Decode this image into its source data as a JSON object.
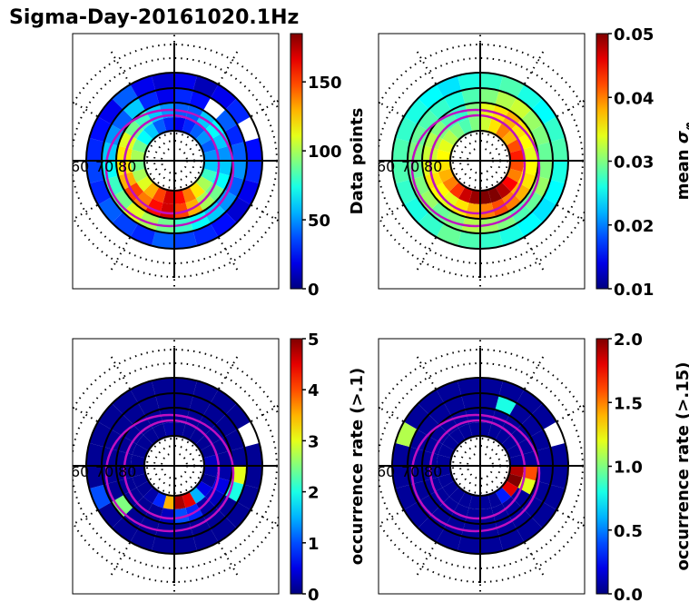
{
  "title": "Sigma-Day-20161020.1Hz",
  "chart_data": [
    {
      "type": "heatmap",
      "projection": "polar",
      "colorbar_label": "Data points",
      "clim": [
        0,
        185
      ],
      "ticks": [
        0,
        50,
        100,
        150
      ],
      "tick_labels": [
        "0",
        "50",
        "100",
        "150"
      ],
      "lat_labels": [
        "60",
        "70",
        "80"
      ],
      "rings": [
        [
          100,
          90,
          70,
          60,
          40,
          30,
          20,
          30,
          40,
          50,
          40,
          50,
          60,
          80,
          100,
          120,
          140,
          160,
          170,
          150,
          130,
          110,
          100,
          90
        ],
        [
          120,
          110,
          90,
          80,
          60,
          50,
          40,
          40,
          60,
          70,
          60,
          50,
          60,
          70,
          90,
          100,
          130,
          150,
          170,
          160,
          140,
          150,
          130,
          120
        ],
        [
          60,
          50,
          40,
          60,
          30,
          20,
          30,
          25,
          null,
          40,
          30,
          40,
          50,
          40,
          50,
          60,
          70,
          80,
          90,
          100,
          110,
          90,
          80,
          70
        ],
        [
          30,
          25,
          20,
          40,
          20,
          15,
          20,
          10,
          20,
          30,
          null,
          25,
          30,
          20,
          15,
          25,
          30,
          35,
          40,
          30,
          35,
          40,
          30,
          35
        ]
      ]
    },
    {
      "type": "heatmap",
      "projection": "polar",
      "colorbar_label": "mean σ",
      "colorbar_label_sub": "φ",
      "clim": [
        0.01,
        0.05
      ],
      "ticks": [
        0.01,
        0.02,
        0.03,
        0.04,
        0.05
      ],
      "tick_labels": [
        "0.01",
        "0.02",
        "0.03",
        "0.04",
        "0.05"
      ],
      "lat_labels": [
        "60",
        "70",
        "80"
      ],
      "rings": [
        [
          0.035,
          0.034,
          0.032,
          0.03,
          0.028,
          0.03,
          0.033,
          0.036,
          0.04,
          0.038,
          0.042,
          0.044,
          0.042,
          0.04,
          0.045,
          0.048,
          0.05,
          0.05,
          0.049,
          0.047,
          0.043,
          0.04,
          0.038,
          0.036
        ],
        [
          0.033,
          0.032,
          0.03,
          0.028,
          0.027,
          0.03,
          0.034,
          0.036,
          0.038,
          0.036,
          0.035,
          0.034,
          0.035,
          0.036,
          0.038,
          0.04,
          0.042,
          0.04,
          0.038,
          0.036,
          0.034,
          0.035,
          0.036,
          0.034
        ],
        [
          0.03,
          0.029,
          0.028,
          0.027,
          0.026,
          0.028,
          0.03,
          0.032,
          0.033,
          0.031,
          0.03,
          0.029,
          0.03,
          0.031,
          0.029,
          0.028,
          0.03,
          0.031,
          0.032,
          0.03,
          0.029,
          0.031,
          0.03,
          0.029
        ],
        [
          0.028,
          0.027,
          0.026,
          0.025,
          0.024,
          0.026,
          0.027,
          0.028,
          0.026,
          0.025,
          0.027,
          0.028,
          0.026,
          0.025,
          0.024,
          0.025,
          0.026,
          0.027,
          0.028,
          0.029,
          0.027,
          0.026,
          0.027,
          0.028
        ]
      ]
    },
    {
      "type": "heatmap",
      "projection": "polar",
      "colorbar_label": "occurrence rate (>.1)",
      "clim": [
        0,
        5
      ],
      "ticks": [
        0,
        1,
        2,
        3,
        4,
        5
      ],
      "tick_labels": [
        "0",
        "1",
        "2",
        "3",
        "4",
        "5"
      ],
      "lat_labels": [
        "60",
        "70",
        "80"
      ],
      "rings": [
        [
          0.1,
          0.1,
          0.1,
          0.1,
          0.1,
          0.2,
          0.1,
          0.1,
          0.1,
          0.1,
          0.1,
          0.3,
          0.2,
          0.1,
          0.5,
          1.5,
          4.5,
          4.8,
          3.5,
          0.8,
          0.2,
          0.1,
          0.1,
          0.1
        ],
        [
          0.1,
          0.1,
          0.1,
          0.1,
          0.1,
          0.1,
          0.1,
          0.1,
          0.1,
          0.1,
          0.1,
          0.1,
          0.2,
          0.5,
          0.3,
          0.2,
          0.8,
          1.0,
          0.3,
          0.1,
          0.1,
          0.1,
          0.1,
          0.1
        ],
        [
          0.1,
          0.1,
          0.1,
          0.1,
          0.1,
          0.1,
          0.1,
          0.1,
          0.1,
          0.1,
          0.1,
          0.1,
          3.0,
          2.0,
          0.1,
          0.1,
          0.1,
          0.1,
          0.1,
          0.1,
          0.1,
          2.5,
          0.1,
          0.1
        ],
        [
          0.1,
          0.1,
          0.1,
          0.1,
          0.1,
          0.1,
          0.1,
          0.1,
          0.1,
          0.1,
          null,
          0.1,
          0.1,
          0.1,
          0.1,
          0.1,
          0.1,
          0.1,
          0.1,
          0.1,
          0.1,
          0.1,
          1.0,
          0.1
        ]
      ]
    },
    {
      "type": "heatmap",
      "projection": "polar",
      "colorbar_label": "occurrence rate (>.15)",
      "clim": [
        0,
        2
      ],
      "ticks": [
        0,
        0.5,
        1,
        1.5,
        2
      ],
      "tick_labels": [
        "0.0",
        "0.5",
        "1.0",
        "1.5",
        "2.0"
      ],
      "lat_labels": [
        "60",
        "70",
        "80"
      ],
      "rings": [
        [
          0.05,
          0.05,
          0.05,
          0.05,
          0.05,
          0.05,
          0.05,
          0.05,
          0.05,
          0.05,
          0.05,
          0.05,
          1.9,
          2.0,
          1.8,
          0.3,
          0.05,
          0.05,
          0.05,
          0.05,
          0.05,
          0.05,
          0.05,
          0.05
        ],
        [
          0.05,
          0.05,
          0.05,
          0.05,
          0.05,
          0.05,
          0.05,
          0.05,
          0.05,
          0.05,
          0.05,
          0.05,
          1.6,
          1.2,
          0.05,
          0.05,
          0.05,
          0.05,
          0.05,
          0.05,
          0.05,
          0.05,
          0.05,
          0.05
        ],
        [
          0.05,
          0.05,
          0.05,
          0.05,
          0.05,
          0.05,
          0.05,
          0.8,
          0.05,
          0.05,
          0.05,
          0.05,
          0.05,
          0.05,
          0.05,
          0.05,
          0.05,
          0.05,
          0.05,
          0.05,
          0.05,
          0.05,
          0.05,
          0.05
        ],
        [
          0.05,
          1.1,
          0.05,
          0.05,
          0.05,
          0.05,
          0.05,
          0.05,
          0.05,
          0.05,
          null,
          0.05,
          0.05,
          0.05,
          0.05,
          0.05,
          0.05,
          0.05,
          0.05,
          0.05,
          0.05,
          0.05,
          0.05,
          0.05
        ]
      ]
    }
  ]
}
